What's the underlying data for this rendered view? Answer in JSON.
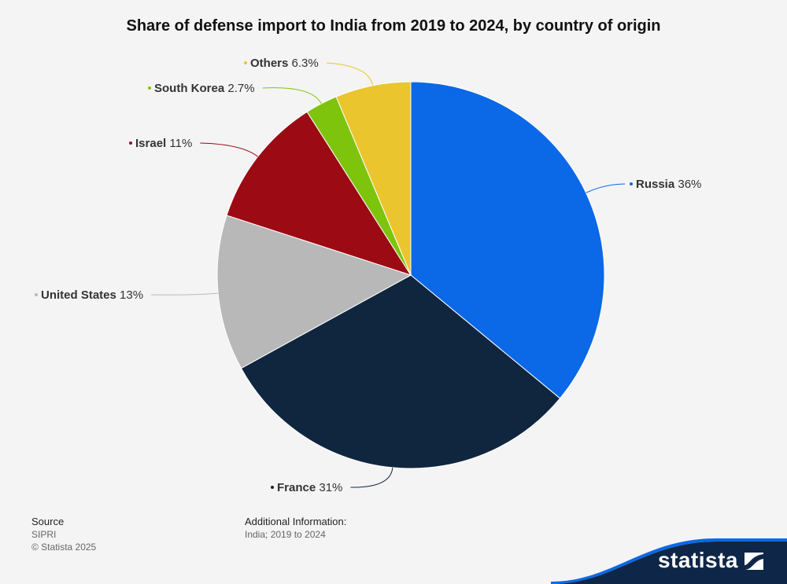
{
  "chart_data": {
    "type": "pie",
    "title": "Share of defense import to India from 2019 to 2024, by country of origin",
    "slices": [
      {
        "label": "Russia",
        "value": 36,
        "display": "36%",
        "color": "#0b68e6"
      },
      {
        "label": "France",
        "value": 31,
        "display": "31%",
        "color": "#10263f"
      },
      {
        "label": "United States",
        "value": 13,
        "display": "13%",
        "color": "#b8b8b8"
      },
      {
        "label": "Israel",
        "value": 11,
        "display": "11%",
        "color": "#9c0a14"
      },
      {
        "label": "South Korea",
        "value": 2.7,
        "display": "2.7%",
        "color": "#7ec40d"
      },
      {
        "label": "Others",
        "value": 6.3,
        "display": "6.3%",
        "color": "#eac52e"
      }
    ]
  },
  "footer": {
    "source_heading": "Source",
    "source_name": "SIPRI",
    "copyright": "© Statista 2025",
    "info_heading": "Additional Information:",
    "info_text": "India; 2019 to 2024"
  },
  "brand": {
    "name": "statista",
    "color": "#0e2748"
  }
}
